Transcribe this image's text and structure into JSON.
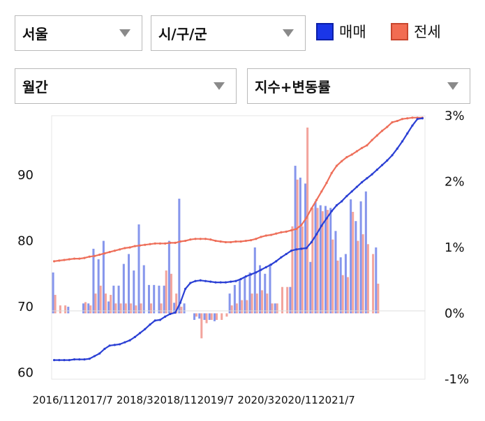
{
  "filters": {
    "region": "서울",
    "district": "시/구/군",
    "period": "월간",
    "metric": "지수+변동률"
  },
  "legend": {
    "sale_label": "매매",
    "jeonse_label": "전세"
  },
  "colors": {
    "sale_line": "#2a3fd4",
    "sale_bar": "#8696ec",
    "jeonse_line": "#ee6f5a",
    "jeonse_bar": "#f3a49c",
    "legend_sale": "#1a36e8",
    "legend_jeonse": "#f26c52"
  },
  "chart_data": {
    "type": "line",
    "x_ticks": [
      "2016/11",
      "2017/7",
      "2018/3",
      "2018/11",
      "2019/7",
      "2020/3",
      "2020/11",
      "2021/7"
    ],
    "y_left_ticks": [
      "60",
      "70",
      "80",
      "90"
    ],
    "y_right_ticks": [
      "3%",
      "2%",
      "1%",
      "0%",
      "-1%"
    ],
    "y_left_range": [
      59,
      99
    ],
    "y_right_range": [
      -1,
      3
    ],
    "grid": false,
    "sale_index": [
      61.9,
      61.9,
      61.9,
      61.9,
      62.0,
      62.0,
      62.0,
      62.1,
      62.5,
      62.9,
      63.6,
      64.1,
      64.2,
      64.3,
      64.6,
      64.9,
      65.4,
      66.0,
      66.6,
      67.3,
      67.9,
      68.0,
      68.5,
      68.9,
      69.1,
      70.6,
      72.7,
      73.6,
      73.9,
      74.0,
      73.9,
      73.8,
      73.7,
      73.7,
      73.7,
      73.8,
      73.9,
      74.2,
      74.6,
      74.9,
      75.2,
      75.6,
      76.0,
      76.4,
      76.9,
      77.5,
      78.0,
      78.5,
      78.7,
      78.8,
      78.9,
      79.8,
      81.0,
      82.3,
      83.4,
      84.5,
      85.4,
      86.0,
      86.8,
      87.5,
      88.2,
      88.9,
      89.5,
      90.1,
      90.8,
      91.5,
      92.2,
      93.0,
      94.0,
      95.1,
      96.3,
      97.5,
      98.5,
      98.6
    ],
    "jeonse_index": [
      76.9,
      77.0,
      77.1,
      77.2,
      77.3,
      77.3,
      77.4,
      77.6,
      77.7,
      77.9,
      78.1,
      78.3,
      78.5,
      78.7,
      78.9,
      79.0,
      79.2,
      79.3,
      79.4,
      79.5,
      79.6,
      79.6,
      79.6,
      79.7,
      79.7,
      79.9,
      80.0,
      80.2,
      80.3,
      80.3,
      80.3,
      80.2,
      80.0,
      79.9,
      79.8,
      79.8,
      79.9,
      79.9,
      80.0,
      80.1,
      80.3,
      80.6,
      80.8,
      80.9,
      81.1,
      81.3,
      81.4,
      81.6,
      81.8,
      82.4,
      83.5,
      84.9,
      86.2,
      87.5,
      88.8,
      90.3,
      91.4,
      92.1,
      92.7,
      93.1,
      93.6,
      94.1,
      94.5,
      95.3,
      96.0,
      96.7,
      97.3,
      98.0,
      98.2,
      98.5,
      98.6,
      98.7,
      98.7,
      98.7
    ],
    "sale_change": [
      0.62,
      0.0,
      0.0,
      0.1,
      0.0,
      0.0,
      0.15,
      0.15,
      0.98,
      0.82,
      1.1,
      0.18,
      0.42,
      0.42,
      0.75,
      0.9,
      0.65,
      1.35,
      0.73,
      0.43,
      0.43,
      0.42,
      0.42,
      1.1,
      0.16,
      1.74,
      0.15,
      0.0,
      -0.1,
      -0.08,
      -0.1,
      -0.1,
      -0.12,
      0.0,
      0.0,
      0.3,
      0.43,
      0.52,
      0.55,
      0.62,
      1.0,
      0.73,
      0.6,
      0.75,
      0.15,
      0.0,
      0.0,
      0.4,
      2.24,
      2.06,
      1.97,
      0.78,
      1.7,
      1.64,
      1.63,
      1.6,
      1.25,
      0.85,
      0.9,
      1.73,
      1.4,
      1.7,
      1.85,
      0.0,
      1.0,
      0.0,
      0.0,
      0.0,
      0.0,
      0.0,
      0.0,
      0.0,
      0.0,
      0.0
    ],
    "jeonse_change": [
      0.28,
      0.12,
      0.12,
      0.0,
      0.0,
      0.0,
      0.17,
      0.12,
      0.3,
      0.42,
      0.3,
      0.28,
      0.15,
      0.15,
      0.15,
      0.15,
      0.12,
      0.15,
      0.0,
      0.15,
      0.0,
      0.15,
      0.65,
      0.6,
      0.3,
      0.1,
      0.0,
      0.0,
      -0.05,
      -0.38,
      -0.15,
      -0.1,
      -0.1,
      -0.1,
      -0.05,
      0.12,
      0.15,
      0.2,
      0.2,
      0.3,
      0.3,
      0.35,
      0.3,
      0.15,
      0.15,
      0.4,
      0.4,
      1.32,
      2.03,
      1.32,
      2.82,
      1.6,
      1.6,
      1.55,
      1.57,
      1.12,
      0.8,
      0.58,
      0.55,
      1.54,
      1.1,
      1.2,
      1.05,
      0.9,
      0.45,
      0.0,
      0.0,
      0.0,
      0.0,
      0.0,
      0.0,
      0.0,
      0.0,
      0.0
    ]
  }
}
